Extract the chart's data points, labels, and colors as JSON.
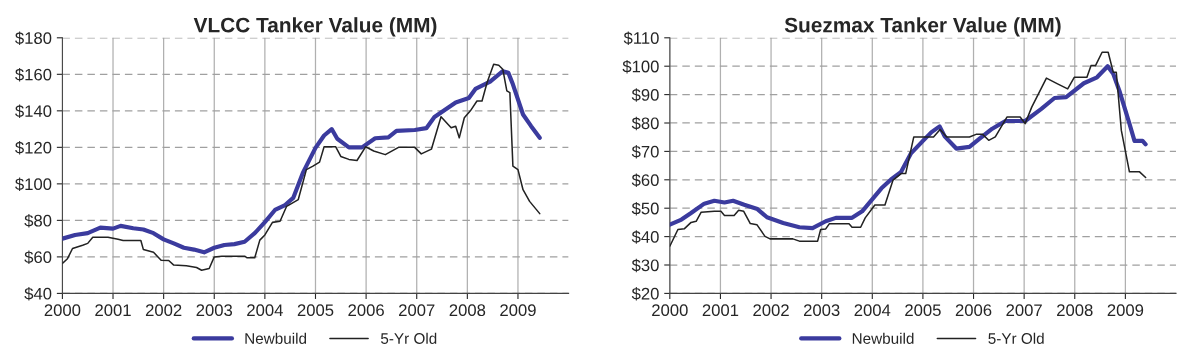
{
  "chart_data": [
    {
      "type": "line",
      "title": "VLCC Tanker Value (MM)",
      "xlim": [
        2000,
        2010
      ],
      "xticks": [
        2000,
        2001,
        2002,
        2003,
        2004,
        2005,
        2006,
        2007,
        2008,
        2009
      ],
      "ylim": [
        40,
        180
      ],
      "yticks": [
        {
          "value": 40,
          "label": "$40"
        },
        {
          "value": 60,
          "label": "$60"
        },
        {
          "value": 80,
          "label": "$80"
        },
        {
          "value": 100,
          "label": "$100"
        },
        {
          "value": 120,
          "label": "$120"
        },
        {
          "value": 140,
          "label": "$140"
        },
        {
          "value": 160,
          "label": "$160"
        },
        {
          "value": 180,
          "label": "$180"
        }
      ],
      "grid": true,
      "legend": "bottom",
      "marker": "none",
      "line_style": "solid",
      "series": [
        {
          "name": "Newbuild",
          "color": "#3b3b9e",
          "x": [
            2000.0,
            2000.25,
            2000.5,
            2000.75,
            2001.0,
            2001.15,
            2001.4,
            2001.6,
            2001.8,
            2002.0,
            2002.2,
            2002.4,
            2002.6,
            2002.8,
            2003.0,
            2003.2,
            2003.4,
            2003.6,
            2003.8,
            2004.0,
            2004.2,
            2004.4,
            2004.56,
            2004.75,
            2005.0,
            2005.17,
            2005.32,
            2005.43,
            2005.66,
            2005.92,
            2006.18,
            2006.44,
            2006.6,
            2006.96,
            2007.19,
            2007.35,
            2007.77,
            2008.03,
            2008.16,
            2008.45,
            2008.7,
            2008.81,
            2008.9,
            2009.1,
            2009.26,
            2009.43
          ],
          "values": [
            70,
            72,
            73,
            76,
            75.5,
            77,
            75.7,
            75,
            73,
            69.6,
            67.4,
            65,
            64,
            62.5,
            65,
            66.5,
            67,
            68.3,
            73,
            79,
            85.7,
            88.4,
            92.3,
            106,
            119.7,
            126.5,
            130,
            124.7,
            120,
            120,
            125,
            125.5,
            129,
            129.5,
            130.5,
            136.6,
            144.6,
            147,
            152,
            156,
            161.7,
            160.8,
            154.5,
            138,
            131.6,
            125.2
          ]
        },
        {
          "name": "5-Yr Old",
          "color": "#222222",
          "x": [
            2000.0,
            2000.1,
            2000.2,
            2000.4,
            2000.5,
            2000.6,
            2000.9,
            2001.1,
            2001.2,
            2001.55,
            2001.6,
            2001.8,
            2001.95,
            2002.1,
            2002.2,
            2002.45,
            2002.65,
            2002.75,
            2002.9,
            2003.0,
            2003.15,
            2003.6,
            2003.65,
            2003.8,
            2003.9,
            2004.0,
            2004.15,
            2004.3,
            2004.43,
            2004.66,
            2004.82,
            2004.95,
            2005.08,
            2005.17,
            2005.4,
            2005.5,
            2005.66,
            2005.82,
            2005.99,
            2006.15,
            2006.38,
            2006.64,
            2006.96,
            2007.09,
            2007.29,
            2007.48,
            2007.68,
            2007.77,
            2007.84,
            2007.94,
            2008.06,
            2008.19,
            2008.29,
            2008.39,
            2008.52,
            2008.62,
            2008.7,
            2008.78,
            2008.84,
            2008.9,
            2009.0,
            2009.1,
            2009.23,
            2009.43
          ],
          "values": [
            56.4,
            59,
            64.6,
            66.4,
            67.4,
            70.7,
            70.7,
            69.6,
            69,
            69,
            64,
            62.5,
            58.2,
            58,
            55.5,
            55.1,
            54.2,
            52.7,
            53.6,
            60,
            60.4,
            60.4,
            59.5,
            59.5,
            69.2,
            72,
            78.9,
            79.5,
            87.7,
            91.4,
            107.8,
            109.7,
            111.9,
            120.3,
            120.3,
            115,
            113.4,
            112.8,
            120.3,
            118,
            116,
            120,
            120,
            116.4,
            119,
            136.8,
            130.7,
            131.6,
            125.2,
            136.2,
            140,
            145.4,
            145.4,
            155.5,
            165.5,
            165,
            162.8,
            150.9,
            150,
            109.7,
            107.8,
            96.8,
            90.4,
            83.7
          ]
        }
      ]
    },
    {
      "type": "line",
      "title": "Suezmax Tanker Value (MM)",
      "xlim": [
        2000,
        2010
      ],
      "xticks": [
        2000,
        2001,
        2002,
        2003,
        2004,
        2005,
        2006,
        2007,
        2008,
        2009
      ],
      "ylim": [
        20,
        110
      ],
      "yticks": [
        {
          "value": 20,
          "label": "$20"
        },
        {
          "value": 30,
          "label": "$30"
        },
        {
          "value": 40,
          "label": "$40"
        },
        {
          "value": 50,
          "label": "$50"
        },
        {
          "value": 60,
          "label": "$60"
        },
        {
          "value": 70,
          "label": "$70"
        },
        {
          "value": 80,
          "label": "$80"
        },
        {
          "value": 90,
          "label": "$90"
        },
        {
          "value": 100,
          "label": "$100"
        },
        {
          "value": 110,
          "label": "$110"
        }
      ],
      "grid": true,
      "legend": "bottom",
      "marker": "none",
      "line_style": "solid",
      "series": [
        {
          "name": "Newbuild",
          "color": "#3b3b9e",
          "x": [
            2000.0,
            2000.23,
            2000.42,
            2000.68,
            2000.88,
            2001.08,
            2001.25,
            2001.47,
            2001.73,
            2001.92,
            2002.24,
            2002.56,
            2002.82,
            2003.08,
            2003.28,
            2003.6,
            2003.8,
            2003.99,
            2004.18,
            2004.37,
            2004.57,
            2004.76,
            2005.01,
            2005.17,
            2005.33,
            2005.43,
            2005.66,
            2005.92,
            2006.12,
            2006.37,
            2006.63,
            2007.02,
            2007.34,
            2007.6,
            2007.83,
            2008.18,
            2008.44,
            2008.65,
            2008.76,
            2008.89,
            2009.08,
            2009.18,
            2009.34,
            2009.4
          ],
          "values": [
            44.2,
            46,
            48.3,
            51.6,
            52.6,
            52,
            52.6,
            51.2,
            49.7,
            46.8,
            44.8,
            43.3,
            43,
            45.4,
            46.6,
            46.6,
            48.9,
            52.9,
            57,
            60.1,
            62.8,
            69.2,
            73.9,
            76.8,
            78.8,
            75.3,
            71,
            71.6,
            74.5,
            78,
            80.7,
            80.7,
            85,
            88.8,
            89.1,
            94,
            96.1,
            100,
            97.3,
            90.9,
            79.8,
            73.7,
            73.7,
            72.5
          ]
        },
        {
          "name": "5-Yr Old",
          "color": "#222222",
          "x": [
            2000.0,
            2000.16,
            2000.29,
            2000.42,
            2000.52,
            2000.62,
            2000.88,
            2001.01,
            2001.08,
            2001.27,
            2001.36,
            2001.46,
            2001.59,
            2001.72,
            2001.88,
            2001.98,
            2002.43,
            2002.56,
            2002.92,
            2002.98,
            2003.08,
            2003.15,
            2003.54,
            2003.6,
            2003.77,
            2003.86,
            2004.05,
            2004.25,
            2004.41,
            2004.57,
            2004.66,
            2004.82,
            2005.21,
            2005.34,
            2005.47,
            2005.92,
            2006.05,
            2006.18,
            2006.3,
            2006.43,
            2006.66,
            2006.92,
            2007.02,
            2007.15,
            2007.44,
            2007.66,
            2007.86,
            2007.99,
            2008.24,
            2008.32,
            2008.41,
            2008.54,
            2008.66,
            2008.76,
            2008.82,
            2008.92,
            2009.08,
            2009.28,
            2009.4
          ],
          "values": [
            36.6,
            42.5,
            42.8,
            45,
            45.4,
            48.6,
            48.9,
            48.9,
            47.4,
            47.4,
            49.3,
            48.9,
            44.6,
            44.2,
            40.1,
            39.2,
            39.2,
            38.4,
            38.4,
            42.5,
            42.7,
            44.5,
            44.5,
            43.3,
            43.3,
            46.6,
            51.1,
            51.1,
            59.9,
            62.2,
            62.2,
            75.1,
            75.1,
            77.7,
            75.1,
            75.1,
            76,
            76,
            73.9,
            75.1,
            82.1,
            82.1,
            79.8,
            85.6,
            95.8,
            93.8,
            92,
            96.1,
            96.1,
            100.2,
            100.2,
            104.9,
            104.9,
            97.9,
            97.9,
            77.4,
            62.8,
            62.8,
            60.8
          ]
        }
      ]
    }
  ]
}
